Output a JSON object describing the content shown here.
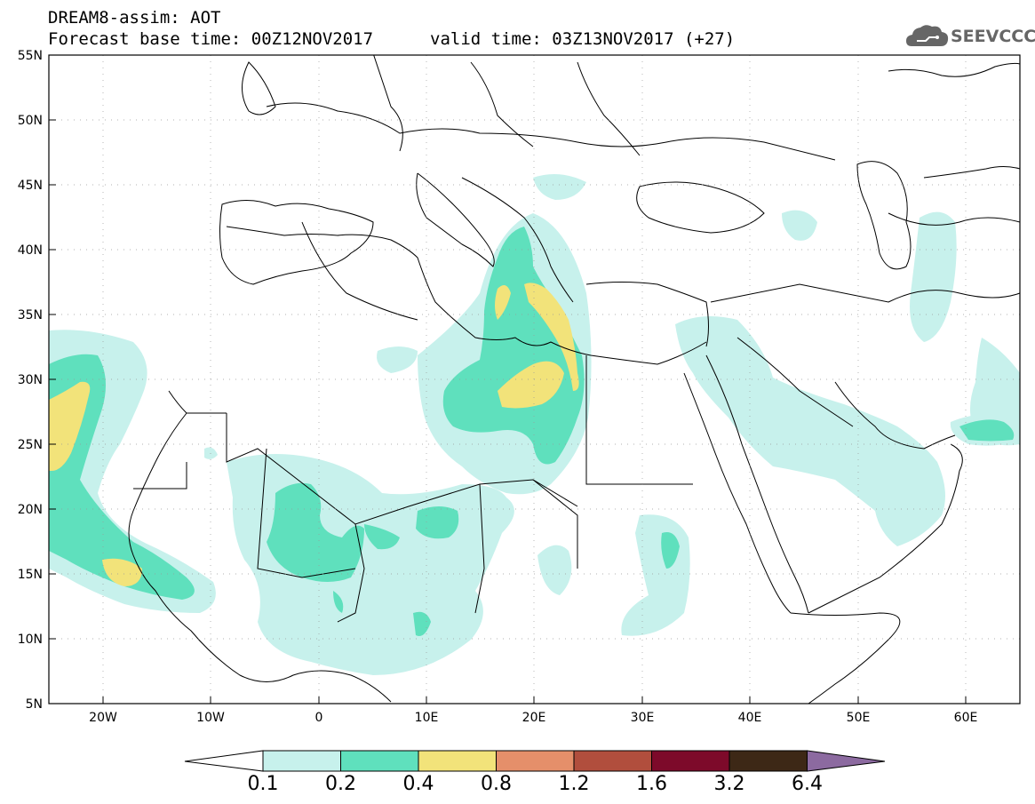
{
  "title": {
    "line1": "DREAM8-assim: AOT",
    "line2": "Forecast base time: 00Z12NOV2017",
    "valid": "valid time: 03Z13NOV2017 (+27)"
  },
  "logo": {
    "text": "SEEVCCC",
    "icon": "cloud-icon"
  },
  "map": {
    "lat_range": [
      5,
      55
    ],
    "lon_range": [
      -25,
      65
    ],
    "lat_ticks": [
      "5N",
      "10N",
      "15N",
      "20N",
      "25N",
      "30N",
      "35N",
      "40N",
      "45N",
      "50N",
      "55N"
    ],
    "lon_ticks": [
      "20W",
      "10W",
      "0",
      "10E",
      "20E",
      "30E",
      "40E",
      "50E",
      "60E"
    ]
  },
  "colorbar": {
    "levels": [
      "0.1",
      "0.2",
      "0.4",
      "0.8",
      "1.2",
      "1.6",
      "3.2",
      "6.4"
    ],
    "colors": [
      "#c7f1ec",
      "#5fe0bd",
      "#f2e37a",
      "#e58f6a",
      "#b14e3d",
      "#7d0a2a",
      "#3d2816",
      "#8c6aa0"
    ]
  }
}
